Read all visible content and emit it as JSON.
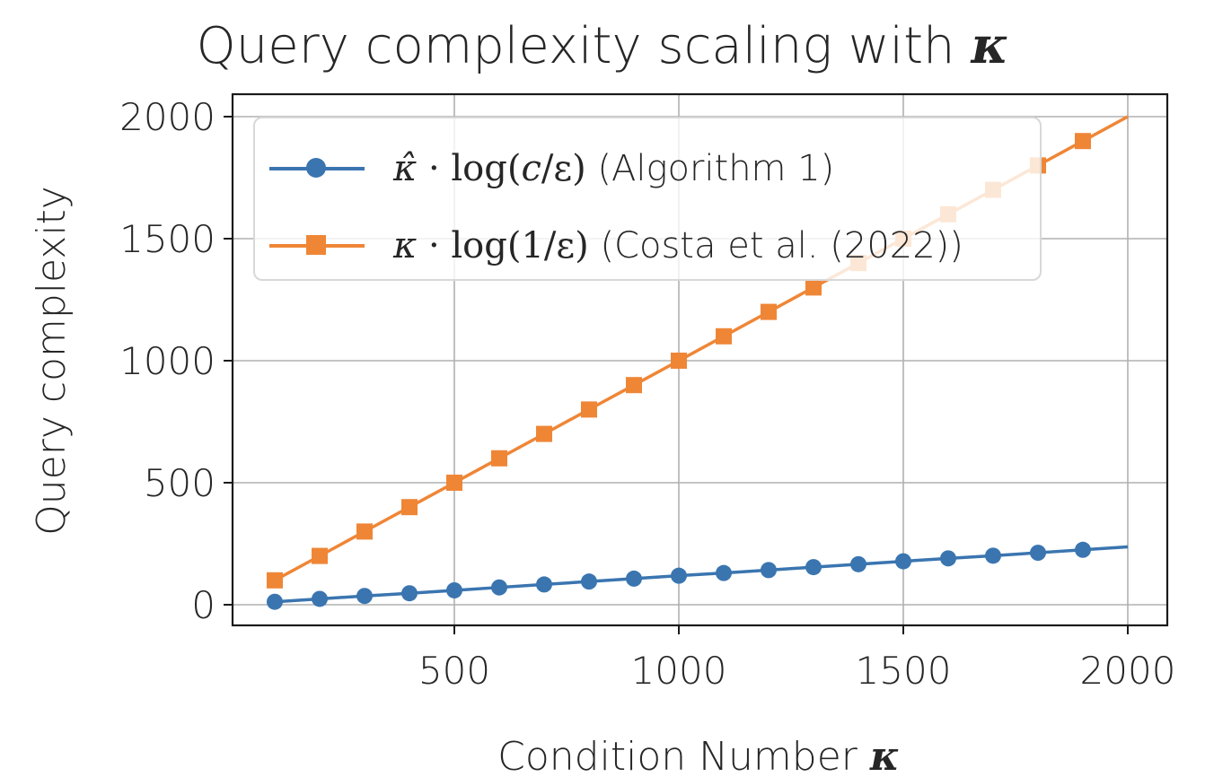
{
  "chart_data": {
    "type": "line",
    "title": "Query complexity scaling with κ",
    "xlabel": "Condition Number κ",
    "ylabel": "Query complexity",
    "xlim": [
      20,
      2090
    ],
    "ylim": [
      -90,
      2100
    ],
    "x_ticks": [
      500,
      1000,
      1500,
      2000
    ],
    "y_ticks": [
      0,
      500,
      1000,
      1500,
      2000
    ],
    "grid": true,
    "legend_position": "upper left",
    "x": [
      100,
      200,
      300,
      400,
      500,
      600,
      700,
      800,
      900,
      1000,
      1100,
      1200,
      1300,
      1400,
      1500,
      1600,
      1700,
      1800,
      1900
    ],
    "series": [
      {
        "name": "κ̂ · log(c/ε) (Algorithm 1)",
        "color": "#3a75b0",
        "marker": "circle",
        "values": [
          12,
          24,
          36,
          47,
          59,
          71,
          83,
          95,
          107,
          119,
          130,
          142,
          154,
          166,
          178,
          190,
          201,
          213,
          225
        ],
        "line_end": {
          "x": 2000,
          "y": 237
        }
      },
      {
        "name": "κ · log(1/ε) (Costa et al. (2022))",
        "color": "#ef8636",
        "marker": "square",
        "values": [
          100,
          200,
          300,
          400,
          500,
          600,
          700,
          800,
          900,
          1000,
          1100,
          1200,
          1300,
          1400,
          1500,
          1600,
          1700,
          1800,
          1900
        ],
        "line_end": {
          "x": 2000,
          "y": 2000
        }
      }
    ]
  },
  "title": {
    "prefix": "Query complexity scaling with ",
    "symbol": "κ"
  },
  "axes": {
    "xlabel_prefix": "Condition Number ",
    "xlabel_symbol": "κ",
    "ylabel": "Query complexity",
    "x_tick_labels": [
      "500",
      "1000",
      "1500",
      "2000"
    ],
    "y_tick_labels": [
      "0",
      "500",
      "1000",
      "1500",
      "2000"
    ]
  },
  "legend": {
    "items": [
      {
        "math_sym": "κ̂",
        "math_rest": " · log(",
        "math_var": "c",
        "math_tail": "/ε)",
        "label": " (Algorithm 1)",
        "color": "#3a75b0"
      },
      {
        "math_sym": "κ",
        "math_rest": " · log(1",
        "math_var": "",
        "math_tail": "/ε)",
        "label": " (Costa et al. (2022))",
        "color": "#ef8636"
      }
    ]
  }
}
